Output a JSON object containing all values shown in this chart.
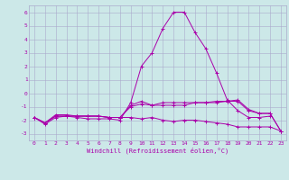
{
  "background_color": "#cce8e8",
  "grid_color": "#aaaacc",
  "line_color": "#aa00aa",
  "xlabel": "Windchill (Refroidissement éolien,°C)",
  "xlim": [
    -0.5,
    23.5
  ],
  "ylim": [
    -3.5,
    6.5
  ],
  "yticks": [
    -3,
    -2,
    -1,
    0,
    1,
    2,
    3,
    4,
    5,
    6
  ],
  "xticks": [
    0,
    1,
    2,
    3,
    4,
    5,
    6,
    7,
    8,
    9,
    10,
    11,
    12,
    13,
    14,
    15,
    16,
    17,
    18,
    19,
    20,
    21,
    22,
    23
  ],
  "series": [
    [
      -1.8,
      -2.2,
      -1.7,
      -1.7,
      -1.8,
      -1.9,
      -1.9,
      -1.9,
      -2.0,
      -0.7,
      2.0,
      3.0,
      4.8,
      6.0,
      6.0,
      4.5,
      3.3,
      1.5,
      -0.5,
      -1.3,
      -1.8,
      -1.8,
      -1.7,
      null
    ],
    [
      -1.8,
      -2.2,
      -1.7,
      -1.7,
      -1.7,
      -1.7,
      -1.7,
      -1.8,
      -1.8,
      -0.9,
      -0.6,
      -0.9,
      -0.7,
      -0.7,
      -0.7,
      -0.7,
      -0.7,
      -0.6,
      -0.6,
      -0.5,
      -1.2,
      -1.5,
      -1.5,
      -2.8
    ],
    [
      -1.8,
      -2.3,
      -1.8,
      -1.7,
      -1.7,
      -1.7,
      -1.7,
      -1.8,
      -1.8,
      -1.0,
      -0.8,
      -0.9,
      -0.9,
      -0.9,
      -0.9,
      -0.7,
      -0.7,
      -0.7,
      -0.6,
      -0.6,
      -1.3,
      -1.5,
      -1.5,
      -2.8
    ],
    [
      -1.8,
      -2.2,
      -1.6,
      -1.6,
      -1.7,
      -1.7,
      -1.7,
      -1.8,
      -1.8,
      -1.8,
      -1.9,
      -1.8,
      -2.0,
      -2.1,
      -2.0,
      -2.0,
      -2.1,
      -2.2,
      -2.3,
      -2.5,
      -2.5,
      -2.5,
      -2.5,
      -2.8
    ]
  ]
}
